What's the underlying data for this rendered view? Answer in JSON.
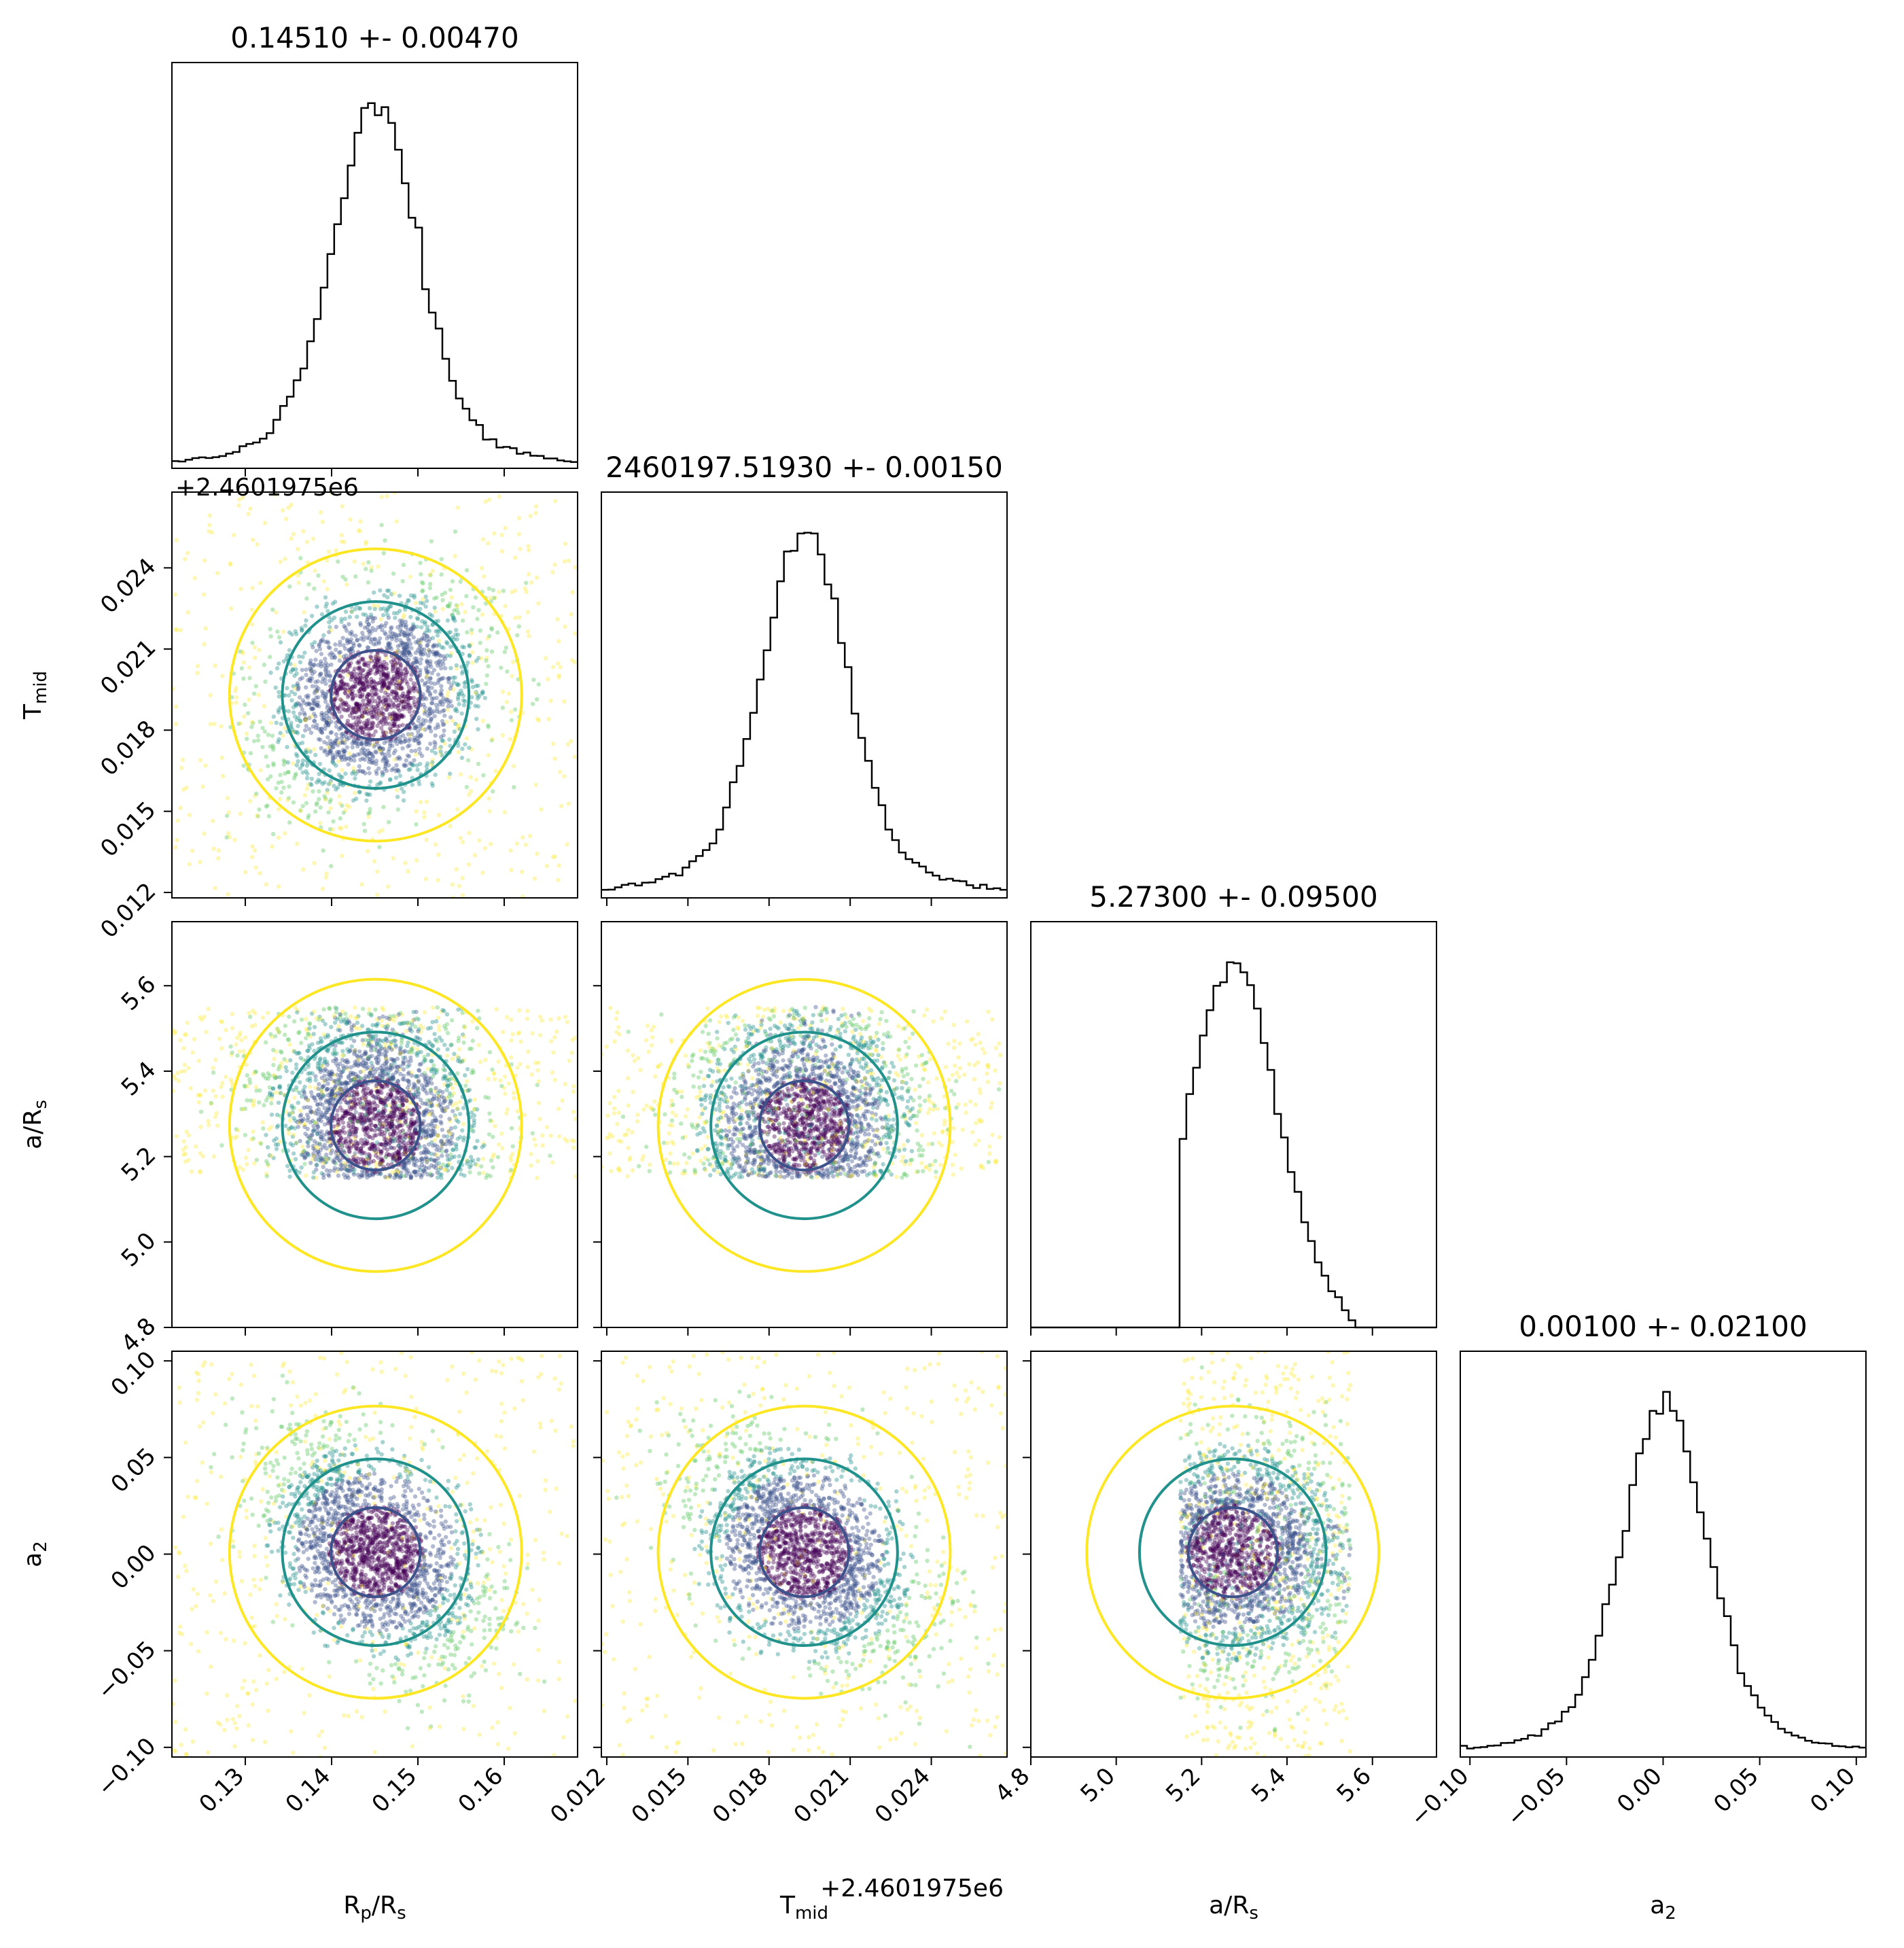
{
  "figure": {
    "type": "corner-plot",
    "parameters": [
      "R_p/R_s",
      "T_mid",
      "a/R_s",
      "a_2"
    ]
  },
  "chart_data": [
    {
      "type": "histogram",
      "param": "R_p/R_s",
      "title": "0.14510 +- 0.00470",
      "xlabel_main": "R",
      "xlabel_sub": "p",
      "xlabel_tail": "/R",
      "xlabel_sub2": "s",
      "xlim": [
        0.1215,
        0.1685
      ],
      "ticks": [
        0.13,
        0.14,
        0.15,
        0.16
      ],
      "tick_labels": [
        "0.13",
        "0.14",
        "0.15",
        "0.16"
      ],
      "peak_center": 0.1451,
      "sigma": 0.0047,
      "background_fraction": 0.05
    },
    {
      "type": "histogram",
      "param": "T_mid",
      "title": "2460197.51930 +- 0.00150",
      "offset_label": "+2.4601975e6",
      "xlabel_main": "T",
      "xlabel_sub": "mid",
      "xlim": [
        0.0118,
        0.0268
      ],
      "ticks": [
        0.012,
        0.015,
        0.018,
        0.021,
        0.024
      ],
      "tick_labels": [
        "0.012",
        "0.015",
        "0.018",
        "0.021",
        "0.024"
      ],
      "peak_center": 0.0193,
      "sigma": 0.0015,
      "background_fraction": 0.06
    },
    {
      "type": "histogram",
      "param": "a/R_s",
      "title": "5.27300 +- 0.09500",
      "xlabel_main": "a/R",
      "xlabel_sub": "s",
      "xlim": [
        4.8,
        5.75
      ],
      "ticks": [
        4.8,
        5.0,
        5.2,
        5.4,
        5.6
      ],
      "tick_labels": [
        "4.8",
        "5.0",
        "5.2",
        "5.4",
        "5.6"
      ],
      "support": [
        5.15,
        5.55
      ],
      "peak_center": 5.273,
      "sigma": 0.095
    },
    {
      "type": "histogram",
      "param": "a_2",
      "title": "0.00100 +- 0.02100",
      "xlabel_main": "a",
      "xlabel_sub": "2",
      "xlim": [
        -0.105,
        0.105
      ],
      "ticks": [
        -0.1,
        -0.05,
        0.0,
        0.05,
        0.1
      ],
      "tick_labels": [
        "−0.10",
        "−0.05",
        "0.00",
        "0.05",
        "0.10"
      ],
      "peak_center": 0.001,
      "sigma": 0.021,
      "background_fraction": 0.06
    }
  ],
  "row_labels": [
    {
      "main": "",
      "sub": ""
    },
    {
      "main": "T",
      "sub": "mid",
      "tail": "",
      "sub2": ""
    },
    {
      "main": "a/R",
      "sub": "s",
      "tail": "",
      "sub2": ""
    },
    {
      "main": "a",
      "sub": "2",
      "tail": "",
      "sub2": ""
    }
  ],
  "row_offset_label": "+2.4601975e6",
  "colors": {
    "hist_line": "#000000",
    "contour_inner": "#440154",
    "contour_outer_1": "#3b528b",
    "contour_mid": "#21918c",
    "contour_outer": "#fde725",
    "points": [
      "#440154",
      "#3b528b",
      "#21918c",
      "#5ec962",
      "#fde725"
    ]
  }
}
